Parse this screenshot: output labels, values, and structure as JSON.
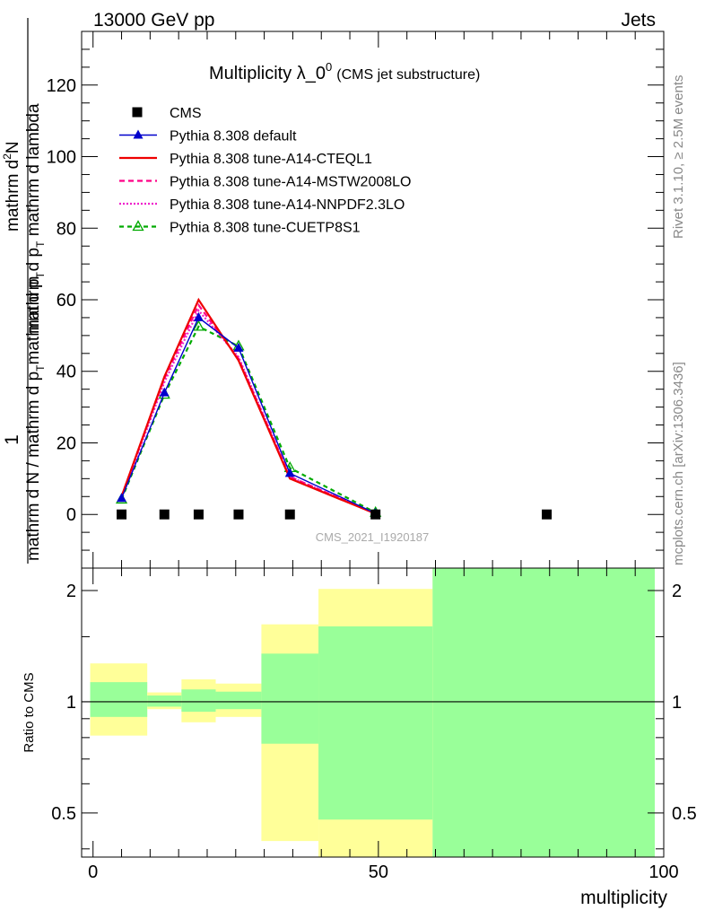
{
  "header": {
    "left": "13000 GeV pp",
    "right": "Jets"
  },
  "side": {
    "top": "Rivet 3.1.10, ≥ 2.5M events",
    "bottom": "mcplots.cern.ch [arXiv:1306.3436]"
  },
  "chart_data": [
    {
      "type": "line",
      "title": "Multiplicity λ_0",
      "title_sup": "0",
      "subtitle": "(CMS jet substructure)",
      "watermark": "CMS_2021_I1920187",
      "ylabel_num": "mathrm d",
      "ylabel_num_sup": "2",
      "ylabel_num_end": "N",
      "ylabel_den_pre": "mathrm d p",
      "ylabel_den_sub": "T",
      "ylabel_den_post": " mathrm d lambda",
      "ylabel_pre_num": "1",
      "ylabel_pre_den_a": "mathrm d N / mathrm d p",
      "ylabel_pre_den_sub": "T",
      "ylabel_pre_den_b": "mathrm d p",
      "ylabel_pre_den_sub2": "T",
      "ylim": [
        -15,
        135
      ],
      "y_ticks": [
        0,
        20,
        40,
        60,
        80,
        100,
        120
      ],
      "xlim": [
        -2,
        100
      ],
      "legend_position": "top-left",
      "series": [
        {
          "name": "CMS",
          "color": "#000000",
          "marker": "square",
          "x": [
            5,
            12.5,
            18.5,
            25.5,
            34.5,
            49.5,
            79.5
          ],
          "y": [
            0,
            0,
            0,
            0,
            0,
            0,
            0
          ]
        },
        {
          "name": "Pythia 8.308 default",
          "color": "#0000cc",
          "marker": "triangle",
          "dash": "",
          "x": [
            5,
            12.5,
            18.5,
            25.5,
            34.5,
            49.5
          ],
          "y": [
            4.5,
            34,
            55,
            46.5,
            11.5,
            0.3
          ]
        },
        {
          "name": "Pythia 8.308 tune-A14-CTEQL1",
          "color": "#ee0000",
          "marker": "none",
          "dash": "",
          "x": [
            5,
            12.5,
            18.5,
            25.5,
            34.5,
            49.5
          ],
          "y": [
            5,
            38.5,
            60,
            43,
            10,
            0.2
          ]
        },
        {
          "name": "Pythia 8.308 tune-A14-MSTW2008LO",
          "color": "#ff0088",
          "marker": "none",
          "dash": "6,4",
          "x": [
            5,
            12.5,
            18.5,
            25.5,
            34.5,
            49.5
          ],
          "y": [
            5,
            38,
            58.5,
            43.5,
            10.5,
            0.2
          ]
        },
        {
          "name": "Pythia 8.308 tune-A14-NNPDF2.3LO",
          "color": "#ee22cc",
          "marker": "none",
          "dash": "2,2",
          "x": [
            5,
            12.5,
            18.5,
            25.5,
            34.5,
            49.5
          ],
          "y": [
            4.8,
            37,
            57,
            44,
            10.5,
            0.2
          ]
        },
        {
          "name": "Pythia 8.308 tune-CUETP8S1",
          "color": "#00aa00",
          "marker": "open-triangle",
          "dash": "5,4",
          "x": [
            5,
            12.5,
            18.5,
            25.5,
            34.5,
            49.5
          ],
          "y": [
            4.2,
            33.5,
            52.5,
            47,
            13,
            0.5
          ]
        }
      ]
    },
    {
      "type": "area",
      "ylabel": "Ratio to CMS",
      "xlabel": "multiplicity",
      "y_scale": "log",
      "ylim": [
        0.38,
        2.3
      ],
      "xlim": [
        -2,
        100
      ],
      "y_ticks": [
        0.5,
        1,
        2
      ],
      "x_ticks": [
        0,
        50,
        100
      ],
      "reference_line": 1,
      "bands": [
        {
          "x0": -0.5,
          "x1": 9.5,
          "yellow": [
            0.81,
            1.27
          ],
          "green": [
            0.91,
            1.13
          ]
        },
        {
          "x0": 9.5,
          "x1": 15.5,
          "yellow": [
            0.955,
            1.06
          ],
          "green": [
            0.97,
            1.04
          ]
        },
        {
          "x0": 15.5,
          "x1": 21.5,
          "yellow": [
            0.88,
            1.15
          ],
          "green": [
            0.94,
            1.08
          ]
        },
        {
          "x0": 21.5,
          "x1": 29.5,
          "yellow": [
            0.91,
            1.12
          ],
          "green": [
            0.955,
            1.065
          ]
        },
        {
          "x0": 29.5,
          "x1": 39.5,
          "yellow": [
            0.42,
            1.62
          ],
          "green": [
            0.77,
            1.35
          ]
        },
        {
          "x0": 39.5,
          "x1": 59.5,
          "yellow": [
            0.38,
            2.02
          ],
          "green": [
            0.48,
            1.6
          ]
        },
        {
          "x0": 59.5,
          "x1": 99.5,
          "yellow": [
            0.38,
            2.3
          ],
          "green": [
            0.38,
            2.3
          ]
        }
      ],
      "colors": {
        "yellow": "#ffff99",
        "green": "#99ff99"
      }
    }
  ]
}
